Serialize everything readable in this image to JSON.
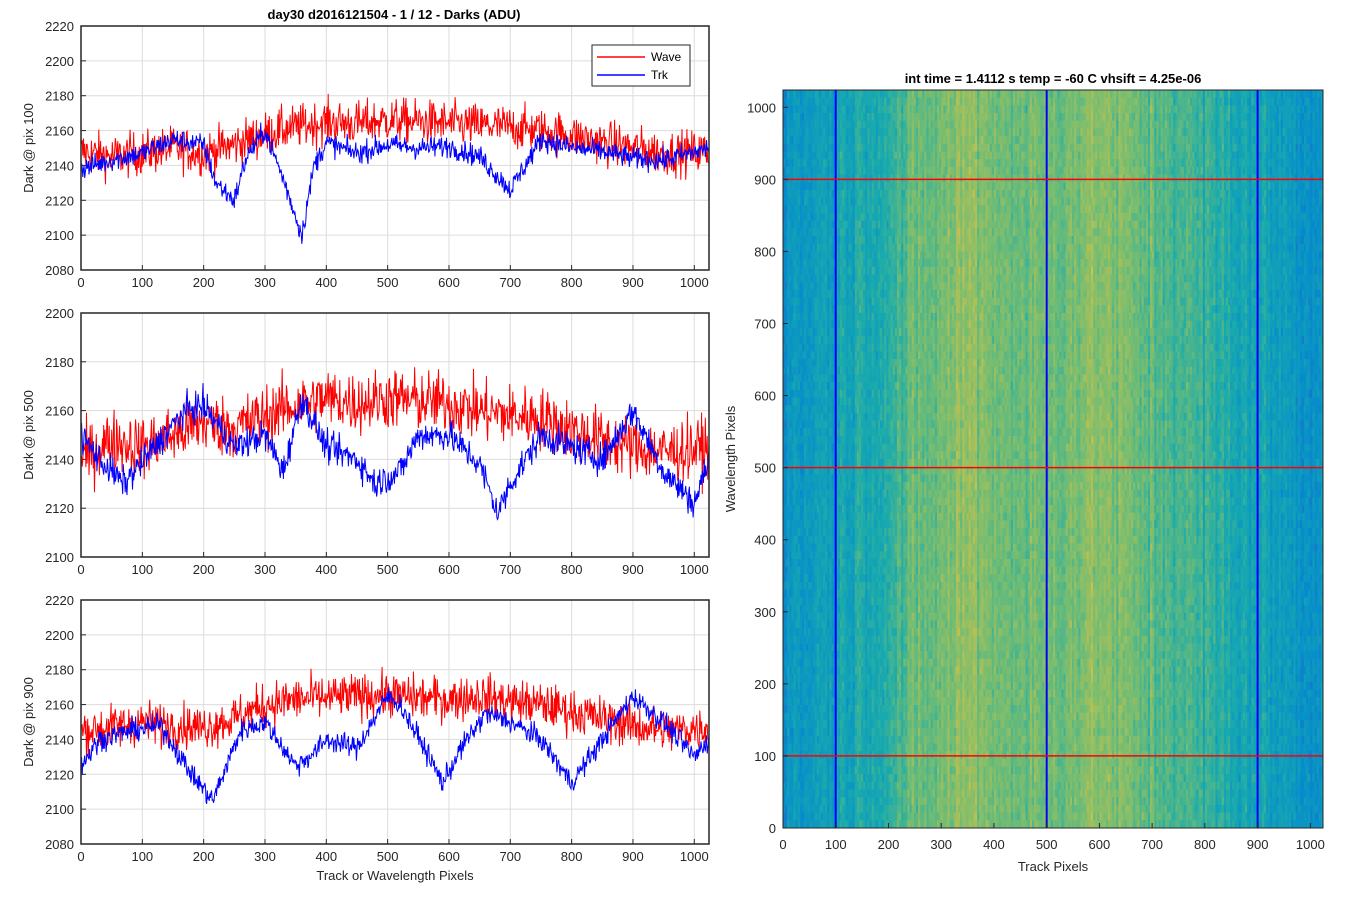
{
  "figure_title": "day30 d2016121504 - 1 / 12 - Darks (ADU)",
  "xlabel_left": "Track or Wavelength Pixels",
  "colors": {
    "wave": "#ff0000",
    "trk": "#0000ff",
    "grid": "#dcdcdc",
    "axis": "#262626"
  },
  "legend": {
    "wave": "Wave",
    "trk": "Trk"
  },
  "chart_data": [
    {
      "type": "line",
      "ylabel": "Dark @ pix 100",
      "xlim": [
        0,
        1024
      ],
      "ylim": [
        2080,
        2220
      ],
      "xticks": [
        0,
        100,
        200,
        300,
        400,
        500,
        600,
        700,
        800,
        900,
        1000
      ],
      "yticks": [
        2080,
        2100,
        2120,
        2140,
        2160,
        2180,
        2200,
        2220
      ],
      "grid": true,
      "legend_position": "top-right",
      "series": [
        {
          "name": "Wave",
          "color": "#ff0000",
          "x": [
            0,
            50,
            100,
            150,
            200,
            250,
            300,
            350,
            400,
            450,
            500,
            550,
            600,
            650,
            700,
            750,
            800,
            850,
            900,
            950,
            1024
          ],
          "y": [
            2148,
            2145,
            2147,
            2150,
            2147,
            2152,
            2158,
            2162,
            2165,
            2164,
            2166,
            2165,
            2164,
            2163,
            2162,
            2160,
            2157,
            2153,
            2150,
            2147,
            2148
          ]
        },
        {
          "name": "Trk",
          "color": "#0000ff",
          "x": [
            0,
            50,
            100,
            150,
            200,
            220,
            250,
            270,
            300,
            330,
            360,
            380,
            400,
            450,
            500,
            550,
            600,
            650,
            700,
            750,
            800,
            850,
            900,
            950,
            1024
          ],
          "y": [
            2138,
            2143,
            2147,
            2155,
            2152,
            2130,
            2120,
            2145,
            2160,
            2132,
            2100,
            2140,
            2153,
            2147,
            2152,
            2150,
            2151,
            2145,
            2126,
            2155,
            2150,
            2148,
            2144,
            2143,
            2150
          ]
        }
      ]
    },
    {
      "type": "line",
      "ylabel": "Dark @ pix 500",
      "xlim": [
        0,
        1024
      ],
      "ylim": [
        2100,
        2200
      ],
      "xticks": [
        0,
        100,
        200,
        300,
        400,
        500,
        600,
        700,
        800,
        900,
        1000
      ],
      "yticks": [
        2100,
        2120,
        2140,
        2160,
        2180,
        2200
      ],
      "grid": true,
      "series": [
        {
          "name": "Wave",
          "color": "#ff0000",
          "x": [
            0,
            50,
            100,
            150,
            200,
            250,
            300,
            350,
            400,
            450,
            500,
            550,
            600,
            650,
            700,
            750,
            800,
            850,
            900,
            950,
            1024
          ],
          "y": [
            2140,
            2148,
            2145,
            2150,
            2155,
            2153,
            2158,
            2162,
            2165,
            2163,
            2165,
            2164,
            2163,
            2160,
            2158,
            2157,
            2152,
            2148,
            2145,
            2143,
            2145
          ]
        },
        {
          "name": "Trk",
          "color": "#0000ff",
          "x": [
            0,
            30,
            70,
            120,
            170,
            200,
            250,
            300,
            330,
            360,
            400,
            450,
            480,
            520,
            550,
            600,
            650,
            680,
            700,
            750,
            800,
            850,
            900,
            950,
            1000,
            1024
          ],
          "y": [
            2150,
            2140,
            2130,
            2145,
            2160,
            2162,
            2145,
            2150,
            2135,
            2165,
            2145,
            2140,
            2130,
            2135,
            2150,
            2150,
            2138,
            2118,
            2130,
            2150,
            2145,
            2140,
            2160,
            2135,
            2122,
            2140
          ]
        }
      ]
    },
    {
      "type": "line",
      "ylabel": "Dark @ pix 900",
      "xlabel": "Track or Wavelength Pixels",
      "xlim": [
        0,
        1024
      ],
      "ylim": [
        2080,
        2220
      ],
      "xticks": [
        0,
        100,
        200,
        300,
        400,
        500,
        600,
        700,
        800,
        900,
        1000
      ],
      "yticks": [
        2080,
        2100,
        2120,
        2140,
        2160,
        2180,
        2200,
        2220
      ],
      "grid": true,
      "series": [
        {
          "name": "Wave",
          "color": "#ff0000",
          "x": [
            0,
            50,
            100,
            150,
            200,
            250,
            300,
            350,
            400,
            450,
            500,
            550,
            600,
            650,
            700,
            750,
            800,
            850,
            900,
            950,
            1024
          ],
          "y": [
            2145,
            2147,
            2150,
            2148,
            2147,
            2152,
            2160,
            2163,
            2164,
            2165,
            2166,
            2164,
            2163,
            2165,
            2162,
            2160,
            2156,
            2152,
            2148,
            2145,
            2147
          ]
        },
        {
          "name": "Trk",
          "color": "#0000ff",
          "x": [
            0,
            30,
            80,
            130,
            180,
            215,
            260,
            300,
            350,
            380,
            400,
            450,
            500,
            520,
            560,
            590,
            620,
            660,
            700,
            750,
            800,
            850,
            900,
            950,
            1000,
            1024
          ],
          "y": [
            2125,
            2140,
            2145,
            2148,
            2120,
            2105,
            2145,
            2150,
            2125,
            2132,
            2140,
            2135,
            2165,
            2160,
            2135,
            2115,
            2135,
            2155,
            2150,
            2140,
            2115,
            2140,
            2165,
            2150,
            2130,
            2140
          ]
        }
      ]
    },
    {
      "type": "heatmap",
      "title": "int time = 1.4112 s    temp = -60 C    vhsift = 4.25e-06",
      "xlabel": "Track Pixels",
      "ylabel": "Wavelength Pixels",
      "xlim": [
        0,
        1024
      ],
      "ylim": [
        0,
        1024
      ],
      "xticks": [
        0,
        100,
        200,
        300,
        400,
        500,
        600,
        700,
        800,
        900,
        1000
      ],
      "yticks": [
        0,
        100,
        200,
        300,
        400,
        500,
        600,
        700,
        800,
        900,
        1000
      ],
      "colormap": "parula",
      "column_profile_x": [
        0,
        50,
        100,
        150,
        200,
        250,
        300,
        350,
        400,
        450,
        500,
        550,
        600,
        650,
        700,
        750,
        800,
        850,
        900,
        950,
        1024
      ],
      "column_profile_level": [
        0.25,
        0.3,
        0.35,
        0.4,
        0.45,
        0.55,
        0.6,
        0.68,
        0.62,
        0.58,
        0.6,
        0.62,
        0.66,
        0.6,
        0.55,
        0.52,
        0.45,
        0.4,
        0.35,
        0.3,
        0.25
      ],
      "marker_lines_vertical": [
        100,
        500,
        900
      ],
      "marker_lines_horizontal": [
        100,
        500,
        900
      ],
      "vertical_line_color": "#0000ff",
      "horizontal_line_color": "#ff0000"
    }
  ]
}
